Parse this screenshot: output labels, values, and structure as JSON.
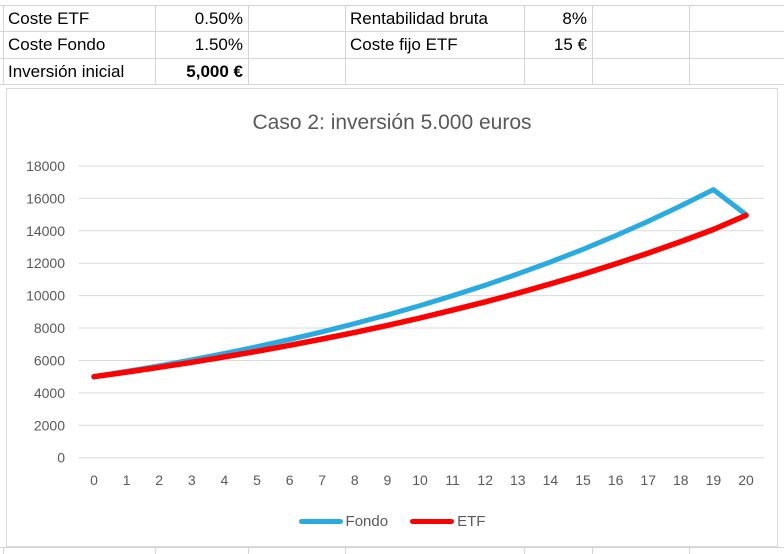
{
  "sheet": {
    "rows": [
      {
        "cells": [
          "Coste ETF",
          "0.50%",
          "Rentabilidad bruta",
          "8%"
        ]
      },
      {
        "cells": [
          "Coste Fondo",
          "1.50%",
          "Coste fijo ETF",
          "15 €"
        ]
      },
      {
        "cells": [
          "Inversión inicial",
          "5,000 €"
        ]
      }
    ]
  },
  "chart_data": {
    "type": "line",
    "title": "Caso 2: inversión 5.000 euros",
    "xlabel": "",
    "ylabel": "",
    "x": [
      0,
      1,
      2,
      3,
      4,
      5,
      6,
      7,
      8,
      9,
      10,
      11,
      12,
      13,
      14,
      15,
      16,
      17,
      18,
      19,
      20
    ],
    "y_ticks": [
      0,
      2000,
      4000,
      6000,
      8000,
      10000,
      12000,
      14000,
      16000,
      18000
    ],
    "ylim": [
      0,
      18000
    ],
    "grid": "horizontal",
    "legend_position": "bottom",
    "series": [
      {
        "name": "Fondo",
        "color": "#29ABE2",
        "values": [
          5000,
          5325,
          5671,
          6040,
          6432,
          6850,
          7296,
          7770,
          8275,
          8813,
          9386,
          9996,
          10646,
          11338,
          12075,
          12860,
          13696,
          14586,
          15534,
          16544,
          15000
        ]
      },
      {
        "name": "ETF",
        "color": "#FF0000",
        "values": [
          5000,
          5280,
          5576,
          5888,
          6218,
          6566,
          6934,
          7322,
          7732,
          8165,
          8622,
          9105,
          9615,
          10153,
          10722,
          11322,
          11956,
          12626,
          13333,
          14080,
          14950
        ]
      }
    ]
  },
  "colors": {
    "sheet_gridline": "#d4d4d4",
    "chart_gridline": "#d9d9d9",
    "chart_border": "#d9d9d9",
    "axis_text": "#595959",
    "title_text": "#595959"
  }
}
